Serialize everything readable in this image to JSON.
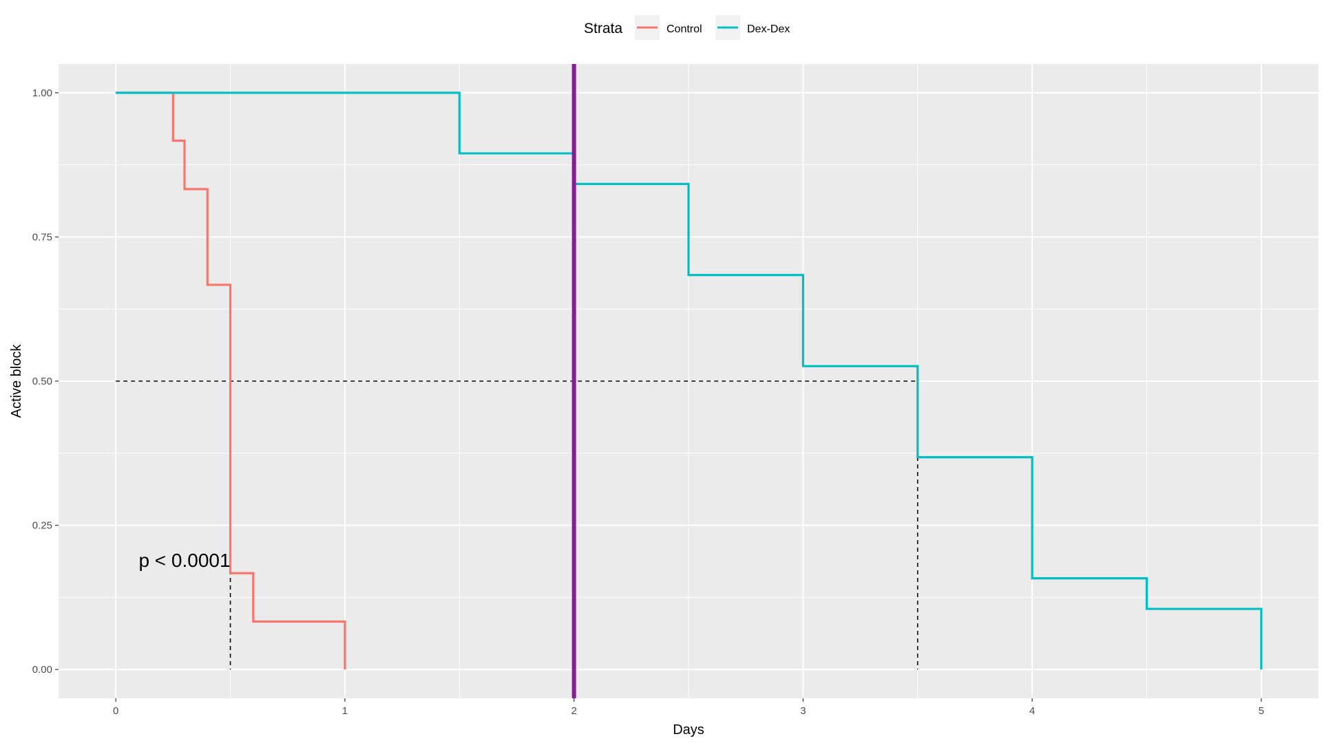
{
  "chart_data": {
    "type": "line",
    "step": true,
    "xlabel": "Days",
    "ylabel": "Active block",
    "xlim": [
      -0.25,
      5.25
    ],
    "ylim": [
      -0.05,
      1.05
    ],
    "x_ticks": [
      0,
      1,
      2,
      3,
      4,
      5
    ],
    "x_tick_labels": [
      "0",
      "1",
      "2",
      "3",
      "4",
      "5"
    ],
    "y_ticks": [
      0,
      0.25,
      0.5,
      0.75,
      1.0
    ],
    "y_tick_labels": [
      "0.00",
      "0.25",
      "0.50",
      "0.75",
      "1.00"
    ],
    "grid": true,
    "legend": {
      "title": "Strata",
      "position": "top",
      "entries": [
        "Control",
        "Dex-Dex"
      ]
    },
    "series": [
      {
        "name": "Control",
        "color": "#F8766D",
        "x": [
          0,
          0.25,
          0.3,
          0.4,
          0.5,
          0.6,
          1.0
        ],
        "y": [
          1.0,
          0.917,
          0.833,
          0.667,
          0.167,
          0.083,
          0.0
        ]
      },
      {
        "name": "Dex-Dex",
        "color": "#00BFC4",
        "x": [
          0,
          1.5,
          2.0,
          2.5,
          3.0,
          3.5,
          4.0,
          4.5,
          5.0
        ],
        "y": [
          1.0,
          0.895,
          0.842,
          0.684,
          0.526,
          0.368,
          0.158,
          0.105,
          0.0
        ]
      }
    ],
    "median_lines": {
      "y": 0.5,
      "x": [
        0.5,
        3.5
      ],
      "style": "dashed",
      "color": "#000000"
    },
    "vline": {
      "x": 2,
      "color": "#8B1A9A"
    },
    "annotation": {
      "text": "p < 0.0001",
      "x": 0.1,
      "y": 0.19
    }
  }
}
